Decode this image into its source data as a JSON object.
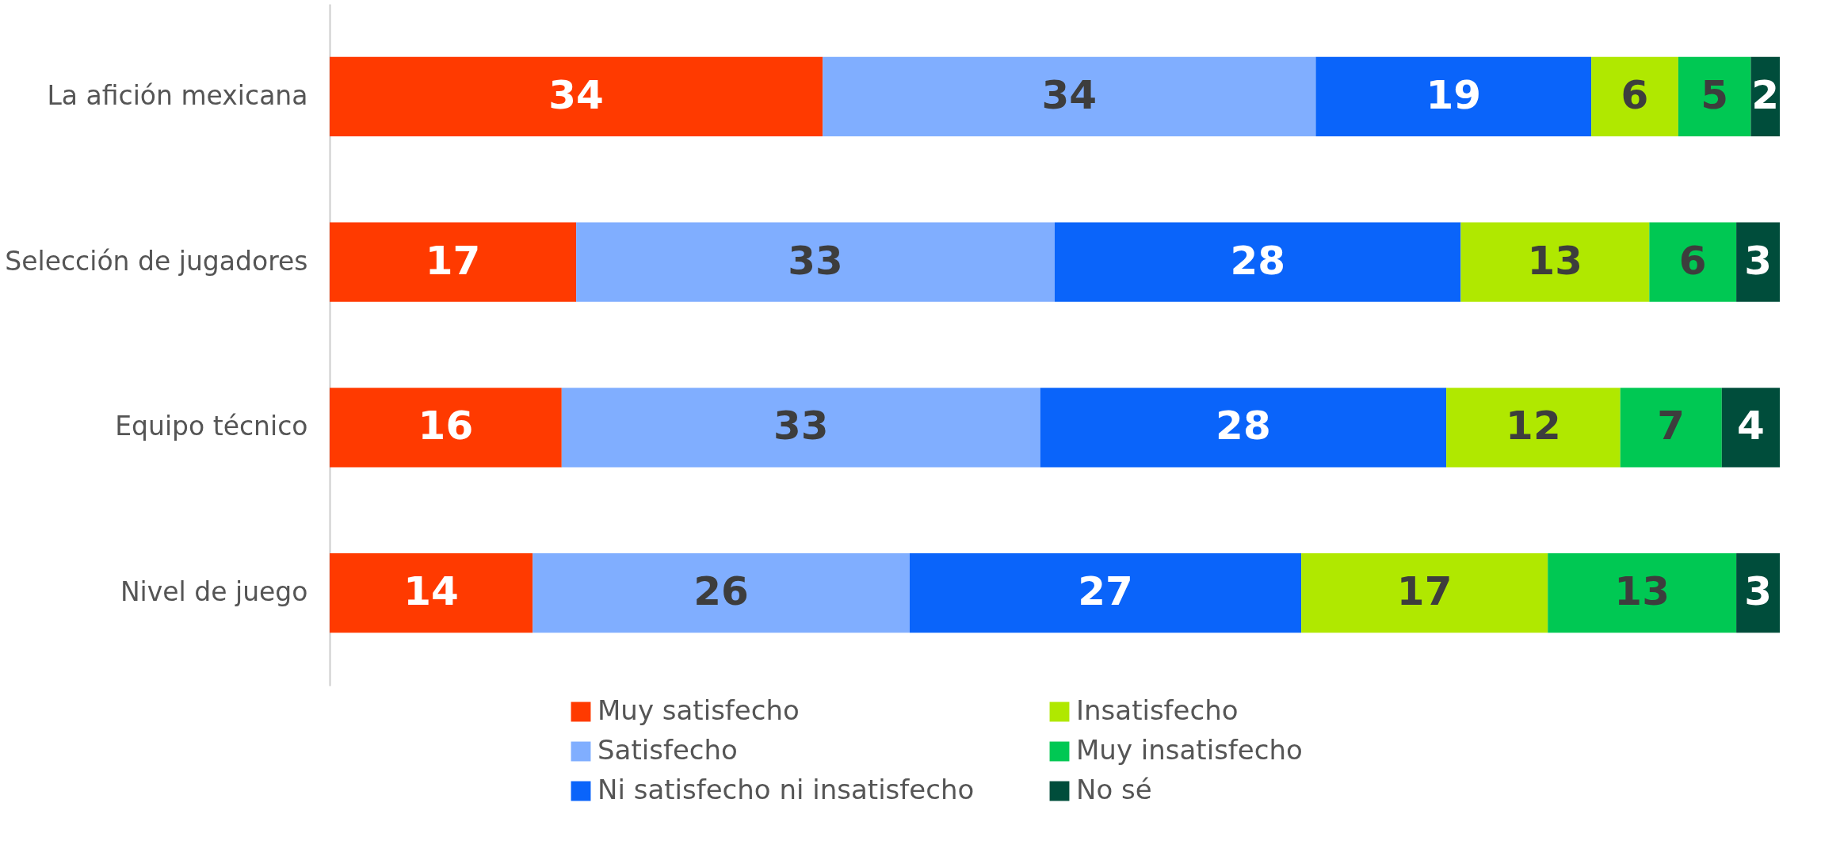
{
  "chart_data": {
    "type": "bar",
    "orientation": "horizontal",
    "stacked": true,
    "data_labels": true,
    "legend": "bottom",
    "tick_labels": "y",
    "categories": [
      "La afición mexicana",
      "Selección de jugadores",
      "Equipo técnico",
      "Nivel de juego"
    ],
    "series": [
      {
        "name": "Muy satisfecho",
        "color": "#ff3a00",
        "values": [
          34,
          17,
          16,
          14
        ]
      },
      {
        "name": "Satisfecho",
        "color": "#80aeff",
        "values": [
          34,
          33,
          33,
          26
        ]
      },
      {
        "name": "Ni satisfecho ni insatisfecho",
        "color": "#0a64fa",
        "values": [
          19,
          28,
          28,
          27
        ]
      },
      {
        "name": "Insatisfecho",
        "color": "#b0e800",
        "values": [
          6,
          13,
          12,
          17
        ]
      },
      {
        "name": "Muy insatisfecho",
        "color": "#00c853",
        "values": [
          5,
          6,
          7,
          13
        ]
      },
      {
        "name": "No sé",
        "color": "#004d3b",
        "values": [
          2,
          3,
          4,
          3
        ]
      }
    ]
  }
}
